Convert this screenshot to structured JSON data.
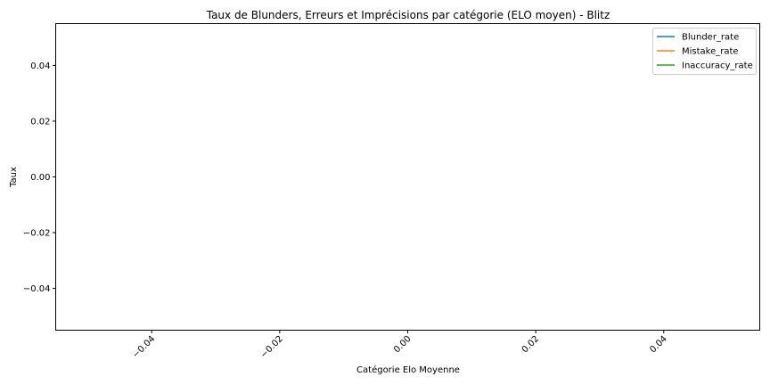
{
  "chart_data": {
    "type": "line",
    "title": "Taux de Blunders, Erreurs et Imprécisions par catégorie (ELO moyen) - Blitz",
    "xlabel": "Catégorie Elo Moyenne",
    "ylabel": "Taux",
    "xlim": [
      -0.055,
      0.055
    ],
    "ylim": [
      -0.055,
      0.055
    ],
    "x_ticks": [
      -0.04,
      -0.02,
      0.0,
      0.02,
      0.04
    ],
    "x_tick_labels": [
      "−0.04",
      "−0.02",
      "0.00",
      "0.02",
      "0.04"
    ],
    "x_tick_rotation": 45,
    "y_ticks": [
      0.04,
      0.02,
      0.0,
      -0.02,
      -0.04
    ],
    "y_tick_labels": [
      "0.04",
      "0.02",
      "0.00",
      "−0.02",
      "−0.04"
    ],
    "grid": false,
    "legend_position": "top-right",
    "series": [
      {
        "name": "Blunder_rate",
        "color": "#1f77b4",
        "x": [],
        "y": []
      },
      {
        "name": "Mistake_rate",
        "color": "#ff7f0e",
        "x": [],
        "y": []
      },
      {
        "name": "Inaccuracy_rate",
        "color": "#2ca02c",
        "x": [],
        "y": []
      }
    ]
  }
}
